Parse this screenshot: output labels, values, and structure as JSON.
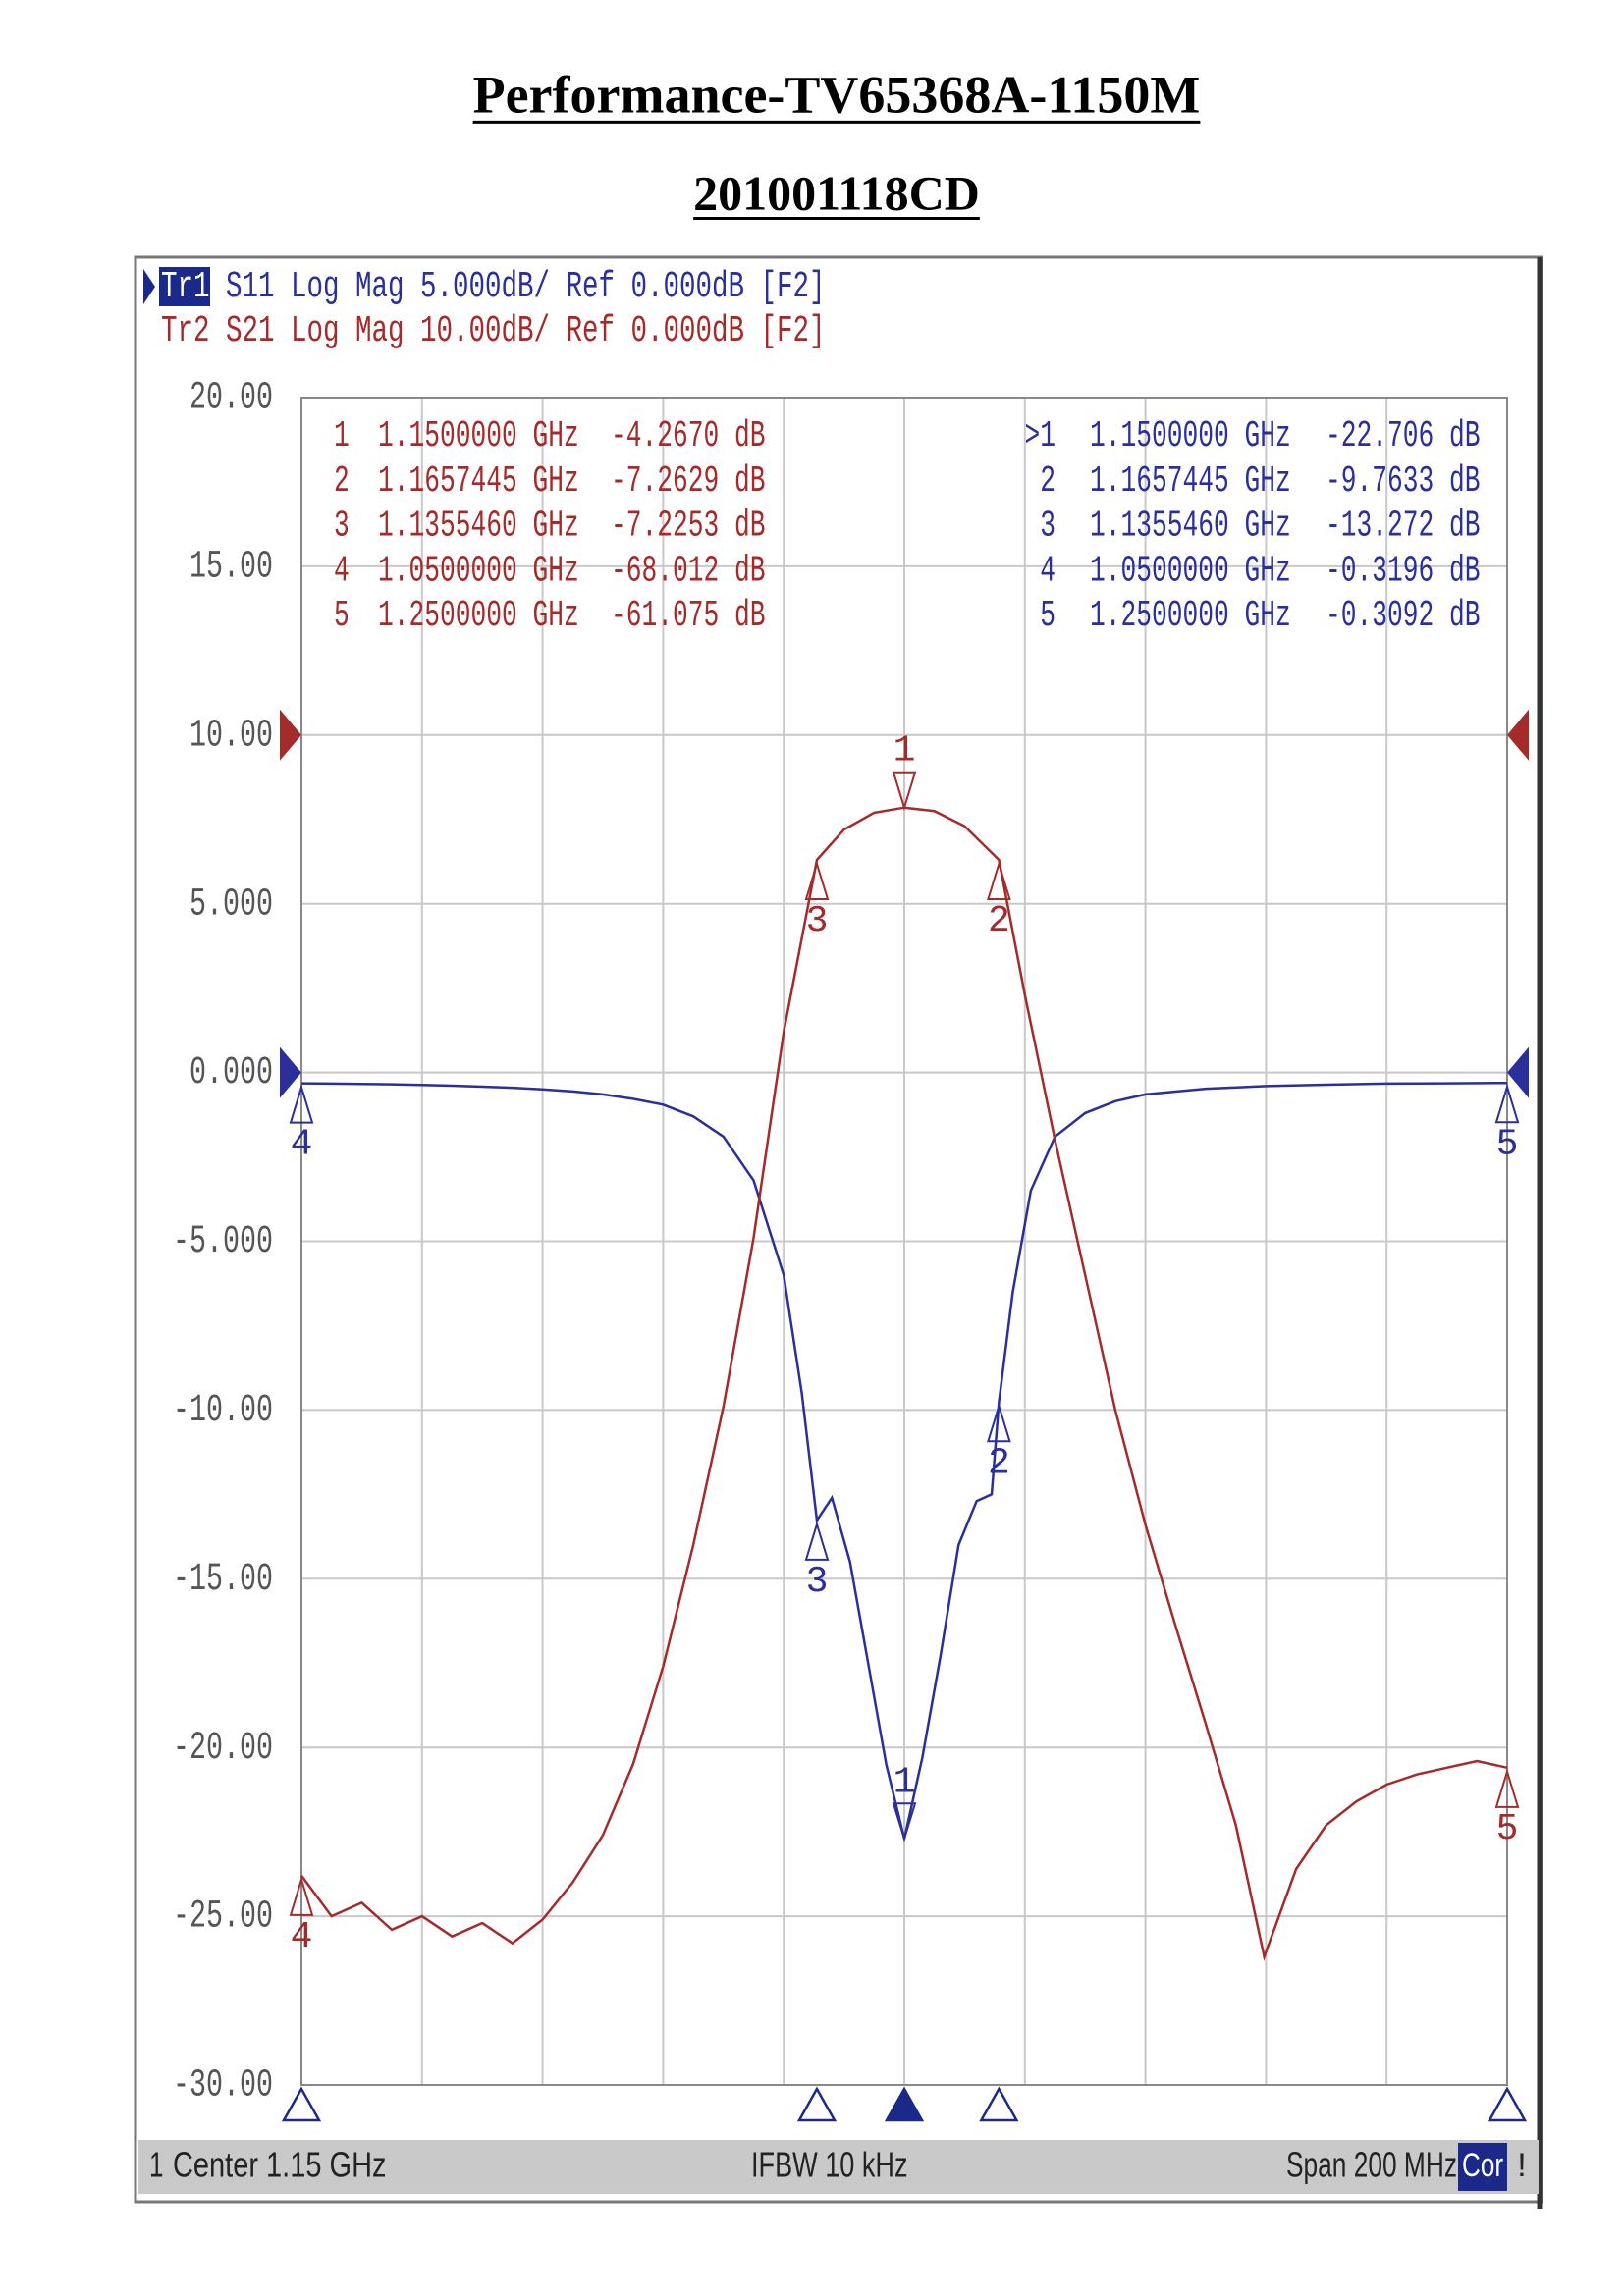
{
  "title": "Performance-TV65368A-1150M",
  "subtitle": "201001118CD",
  "chart_data": {
    "type": "line",
    "xlim": [
      1.05,
      1.25
    ],
    "xticks": [
      1.05,
      1.07,
      1.09,
      1.11,
      1.13,
      1.15,
      1.17,
      1.19,
      1.21,
      1.23,
      1.25
    ],
    "ylim": [
      -30,
      20
    ],
    "yticks": [
      {
        "value": 20,
        "label": "20.00"
      },
      {
        "value": 15,
        "label": "15.00"
      },
      {
        "value": 10,
        "label": "10.00"
      },
      {
        "value": 5,
        "label": "5.000"
      },
      {
        "value": 0,
        "label": "0.000"
      },
      {
        "value": -5,
        "label": "-5.000"
      },
      {
        "value": -10,
        "label": "-10.00"
      },
      {
        "value": -15,
        "label": "-15.00"
      },
      {
        "value": -20,
        "label": "-20.00"
      },
      {
        "value": -25,
        "label": "-25.00"
      },
      {
        "value": -30,
        "label": "-30.00"
      }
    ],
    "grid": true,
    "series": [
      {
        "name": "Tr1",
        "label": "S11 Log Mag 5.000dB/ Ref 0.000dB [F2]",
        "color": "#2a2f9c",
        "x": [
          1.05,
          1.055,
          1.06,
          1.065,
          1.07,
          1.075,
          1.08,
          1.085,
          1.09,
          1.095,
          1.1,
          1.105,
          1.11,
          1.115,
          1.12,
          1.125,
          1.13,
          1.133,
          1.1355,
          1.138,
          1.141,
          1.144,
          1.147,
          1.15,
          1.153,
          1.156,
          1.159,
          1.162,
          1.1645,
          1.1657,
          1.168,
          1.171,
          1.175,
          1.18,
          1.185,
          1.19,
          1.2,
          1.21,
          1.22,
          1.23,
          1.24,
          1.25
        ],
        "values": [
          -0.32,
          -0.33,
          -0.34,
          -0.35,
          -0.37,
          -0.39,
          -0.42,
          -0.45,
          -0.5,
          -0.56,
          -0.65,
          -0.78,
          -0.95,
          -1.3,
          -1.9,
          -3.2,
          -6.0,
          -9.5,
          -13.27,
          -12.6,
          -14.5,
          -17.5,
          -20.5,
          -22.706,
          -20.3,
          -17.3,
          -14.0,
          -12.7,
          -12.5,
          -9.763,
          -6.5,
          -3.5,
          -1.9,
          -1.2,
          -0.85,
          -0.65,
          -0.48,
          -0.4,
          -0.36,
          -0.33,
          -0.32,
          -0.309
        ],
        "markers": [
          {
            "id": ">1",
            "freq": "1.1500000 GHz",
            "value": "-22.706 dB"
          },
          {
            "id": "2",
            "freq": "1.1657445 GHz",
            "value": "-9.7633 dB"
          },
          {
            "id": "3",
            "freq": "1.1355460 GHz",
            "value": "-13.272 dB"
          },
          {
            "id": "4",
            "freq": "1.0500000 GHz",
            "value": "-0.3196 dB"
          },
          {
            "id": "5",
            "freq": "1.2500000 GHz",
            "value": "-0.3092 dB"
          }
        ]
      },
      {
        "name": "Tr2",
        "label": "S21 Log Mag 10.00dB/ Ref 0.000dB [F2]",
        "color": "#a52a2a",
        "x": [
          1.05,
          1.055,
          1.06,
          1.065,
          1.07,
          1.075,
          1.08,
          1.085,
          1.09,
          1.095,
          1.1,
          1.105,
          1.11,
          1.115,
          1.12,
          1.125,
          1.13,
          1.1355,
          1.14,
          1.145,
          1.15,
          1.155,
          1.16,
          1.1657,
          1.17,
          1.175,
          1.18,
          1.185,
          1.19,
          1.195,
          1.2,
          1.205,
          1.2097,
          1.215,
          1.22,
          1.225,
          1.23,
          1.235,
          1.24,
          1.245,
          1.25
        ],
        "values": [
          -23.8,
          -25.0,
          -24.6,
          -25.4,
          -25.0,
          -25.6,
          -25.2,
          -25.8,
          -25.1,
          -24.0,
          -22.6,
          -20.5,
          -17.6,
          -14.0,
          -9.9,
          -4.9,
          1.2,
          6.3,
          7.2,
          7.7,
          7.85,
          7.75,
          7.3,
          6.3,
          2.3,
          -2.0,
          -6.0,
          -10.0,
          -13.4,
          -16.4,
          -19.3,
          -22.3,
          -26.2,
          -23.6,
          -22.3,
          -21.6,
          -21.1,
          -20.8,
          -20.6,
          -20.4,
          -20.6
        ],
        "markers": [
          {
            "id": "1",
            "freq": "1.1500000 GHz",
            "value": "-4.2670 dB"
          },
          {
            "id": "2",
            "freq": "1.1657445 GHz",
            "value": "-7.2629 dB"
          },
          {
            "id": "3",
            "freq": "1.1355460 GHz",
            "value": "-7.2253 dB"
          },
          {
            "id": "4",
            "freq": "1.0500000 GHz",
            "value": "-68.012 dB"
          },
          {
            "id": "5",
            "freq": "1.2500000 GHz",
            "value": "-61.075 dB"
          }
        ]
      }
    ]
  },
  "status": {
    "channel": "1",
    "center": "Center 1.15 GHz",
    "ifbw": "IFBW 10 kHz",
    "span": "Span 200 MHz",
    "cor": "Cor",
    "flag": "!"
  }
}
